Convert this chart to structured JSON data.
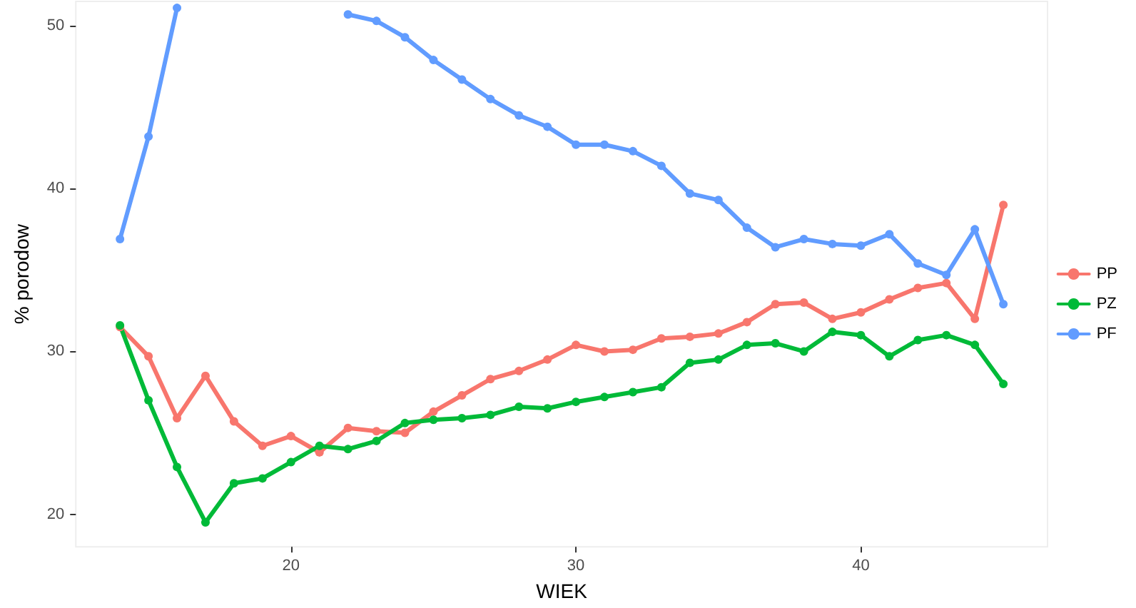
{
  "chart_data": {
    "type": "line",
    "xlabel": "WIEK",
    "ylabel": "% porodow",
    "x": [
      14,
      15,
      16,
      17,
      18,
      19,
      20,
      21,
      22,
      23,
      24,
      25,
      26,
      27,
      28,
      29,
      30,
      31,
      32,
      33,
      34,
      35,
      36,
      37,
      38,
      39,
      40,
      41,
      42,
      43,
      44,
      45
    ],
    "series": [
      {
        "name": "PP",
        "color": "#f8766d",
        "values": [
          31.5,
          29.7,
          25.9,
          28.5,
          25.7,
          24.2,
          24.8,
          23.8,
          25.3,
          25.1,
          25.0,
          26.3,
          27.3,
          28.3,
          28.8,
          29.5,
          30.4,
          30.0,
          30.1,
          30.8,
          30.9,
          31.1,
          31.8,
          32.9,
          33.0,
          32.0,
          32.4,
          33.2,
          33.9,
          34.2,
          32.0,
          39.0
        ]
      },
      {
        "name": "PZ",
        "color": "#00ba38",
        "values": [
          31.6,
          27.0,
          22.9,
          19.5,
          21.9,
          22.2,
          23.2,
          24.2,
          24.0,
          24.5,
          25.6,
          25.8,
          25.9,
          26.1,
          26.6,
          26.5,
          26.9,
          27.2,
          27.5,
          27.8,
          29.3,
          29.5,
          30.4,
          30.5,
          30.0,
          31.2,
          31.0,
          29.7,
          30.7,
          31.0,
          30.4,
          28.0
        ]
      },
      {
        "name": "PF",
        "color": "#619cff",
        "values": [
          36.9,
          43.2,
          51.1,
          null,
          null,
          null,
          null,
          null,
          50.7,
          50.3,
          49.3,
          47.9,
          46.7,
          45.5,
          44.5,
          43.8,
          42.7,
          42.7,
          42.3,
          41.4,
          39.7,
          39.3,
          37.6,
          36.4,
          36.9,
          36.6,
          36.5,
          37.2,
          35.4,
          34.7,
          37.5,
          32.9
        ]
      }
    ],
    "xlim": [
      12.45,
      46.55
    ],
    "xticks": [
      20,
      30,
      40
    ],
    "ylim": [
      18,
      51.5
    ],
    "yticks": [
      20,
      30,
      40,
      50
    ],
    "grid": false,
    "legend": "right",
    "marker": "circle",
    "line_style": "solid"
  }
}
